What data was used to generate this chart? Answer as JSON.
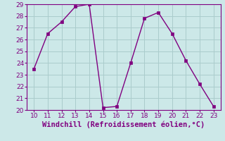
{
  "x": [
    10,
    11,
    12,
    13,
    14,
    15,
    16,
    17,
    18,
    19,
    20,
    21,
    22,
    23
  ],
  "y": [
    23.5,
    26.5,
    27.5,
    28.8,
    29.0,
    20.2,
    20.3,
    24.0,
    27.8,
    28.3,
    26.5,
    24.2,
    22.2,
    20.3
  ],
  "line_color": "#800080",
  "marker_color": "#800080",
  "bg_color": "#cce8e8",
  "grid_color": "#aacccc",
  "xlabel": "Windchill (Refroidissement éolien,°C)",
  "xlim": [
    9.5,
    23.5
  ],
  "ylim": [
    20,
    29
  ],
  "xticks": [
    10,
    11,
    12,
    13,
    14,
    15,
    16,
    17,
    18,
    19,
    20,
    21,
    22,
    23
  ],
  "yticks": [
    20,
    21,
    22,
    23,
    24,
    25,
    26,
    27,
    28,
    29
  ],
  "tick_label_color": "#800080",
  "axis_label_color": "#800080",
  "font_size": 6.5,
  "label_font_size": 7.5
}
